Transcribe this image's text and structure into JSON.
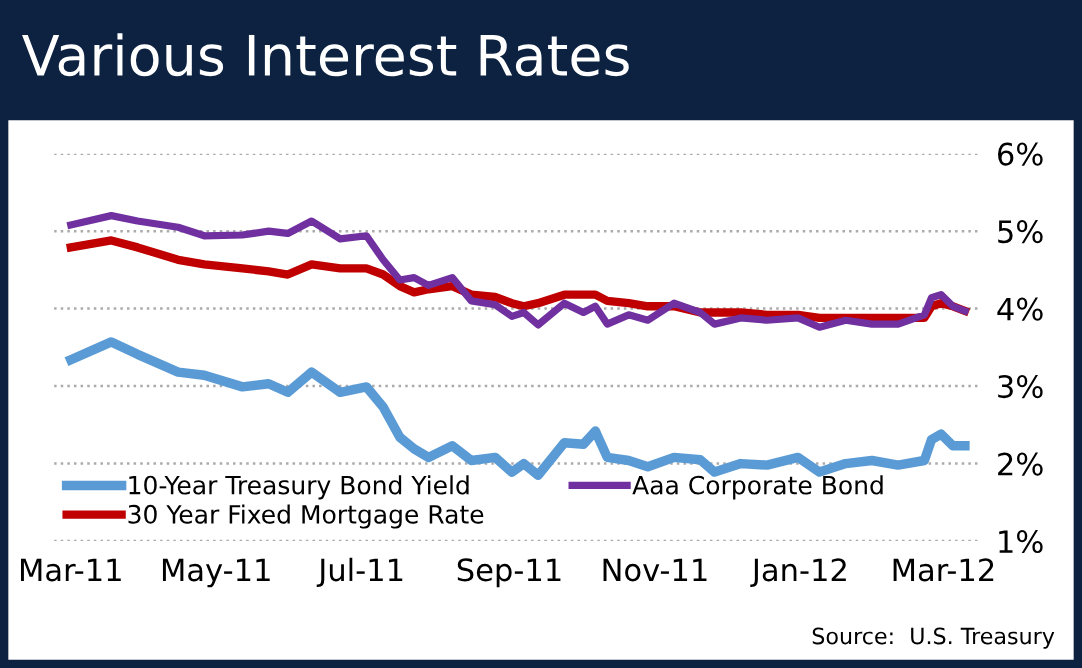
{
  "chart_data": {
    "type": "line",
    "title": "Various Interest Rates",
    "x": [
      "2011-03-01",
      "2011-03-18",
      "2011-03-29",
      "2011-04-15",
      "2011-04-26",
      "2011-05-12",
      "2011-05-23",
      "2011-05-31",
      "2011-06-10",
      "2011-06-22",
      "2011-07-03",
      "2011-07-10",
      "2011-07-17",
      "2011-07-23",
      "2011-07-29",
      "2011-08-08",
      "2011-08-16",
      "2011-08-26",
      "2011-09-02",
      "2011-09-07",
      "2011-09-13",
      "2011-09-24",
      "2011-10-02",
      "2011-10-07",
      "2011-10-12",
      "2011-10-21",
      "2011-10-29",
      "2011-11-09",
      "2011-11-20",
      "2011-11-26",
      "2011-12-07",
      "2011-12-18",
      "2011-12-31",
      "2012-01-09",
      "2012-01-20",
      "2012-01-31",
      "2012-02-11",
      "2012-02-22",
      "2012-02-25",
      "2012-02-29",
      "2012-03-05",
      "2012-03-10"
    ],
    "series": [
      {
        "name": "10-Year Treasury Bond Yield",
        "color": "#5b9bd5",
        "values": [
          3.34,
          3.57,
          3.41,
          3.18,
          3.14,
          2.99,
          3.03,
          2.92,
          3.18,
          2.92,
          2.99,
          2.73,
          2.34,
          2.19,
          2.08,
          2.23,
          2.04,
          2.08,
          1.89,
          2.0,
          1.85,
          2.27,
          2.25,
          2.42,
          2.08,
          2.04,
          1.96,
          2.08,
          2.05,
          1.89,
          2.0,
          1.98,
          2.08,
          1.89,
          2.0,
          2.04,
          1.98,
          2.04,
          2.31,
          2.38,
          2.23,
          2.23
        ]
      },
      {
        "name": "30 Year Fixed Mortgage Rate",
        "color": "#c00000",
        "values": [
          4.79,
          4.88,
          4.79,
          4.63,
          4.57,
          4.52,
          4.48,
          4.44,
          4.57,
          4.52,
          4.52,
          4.44,
          4.29,
          4.21,
          4.25,
          4.29,
          4.18,
          4.15,
          4.07,
          4.03,
          4.07,
          4.18,
          4.18,
          4.18,
          4.1,
          4.07,
          4.03,
          4.03,
          3.95,
          3.95,
          3.95,
          3.92,
          3.92,
          3.88,
          3.88,
          3.88,
          3.88,
          3.88,
          4.03,
          4.07,
          4.03,
          3.97
        ]
      },
      {
        "name": "Aaa Corporate Bond",
        "color": "#7030a0",
        "values": [
          5.08,
          5.2,
          5.13,
          5.05,
          4.94,
          4.95,
          5.0,
          4.97,
          5.13,
          4.9,
          4.94,
          4.63,
          4.37,
          4.4,
          4.3,
          4.4,
          4.1,
          4.05,
          3.9,
          3.95,
          3.79,
          4.07,
          3.95,
          4.03,
          3.8,
          3.92,
          3.85,
          4.07,
          3.95,
          3.8,
          3.88,
          3.85,
          3.88,
          3.76,
          3.85,
          3.8,
          3.8,
          3.92,
          4.14,
          4.18,
          4.03,
          3.97
        ]
      }
    ],
    "xlim": [
      "2011-02-22",
      "2012-03-16"
    ],
    "xticks": [
      {
        "value": "2011-03-01",
        "label": "Mar-11"
      },
      {
        "value": "2011-05-01",
        "label": "May-11"
      },
      {
        "value": "2011-07-01",
        "label": "Jul-11"
      },
      {
        "value": "2011-09-01",
        "label": "Sep-11"
      },
      {
        "value": "2011-11-01",
        "label": "Nov-11"
      },
      {
        "value": "2012-01-01",
        "label": "Jan-12"
      },
      {
        "value": "2012-03-01",
        "label": "Mar-12"
      }
    ],
    "ylim": [
      1,
      6
    ],
    "yticks": [
      {
        "value": 1,
        "label": "1%"
      },
      {
        "value": 2,
        "label": "2%"
      },
      {
        "value": 3,
        "label": "3%"
      },
      {
        "value": 4,
        "label": "4%"
      },
      {
        "value": 5,
        "label": "5%"
      },
      {
        "value": 6,
        "label": "6%"
      }
    ],
    "grid": "y",
    "legend": "bottom left",
    "line_style": "solid",
    "annotations": [
      "Source:  U.S. Treasury"
    ]
  }
}
